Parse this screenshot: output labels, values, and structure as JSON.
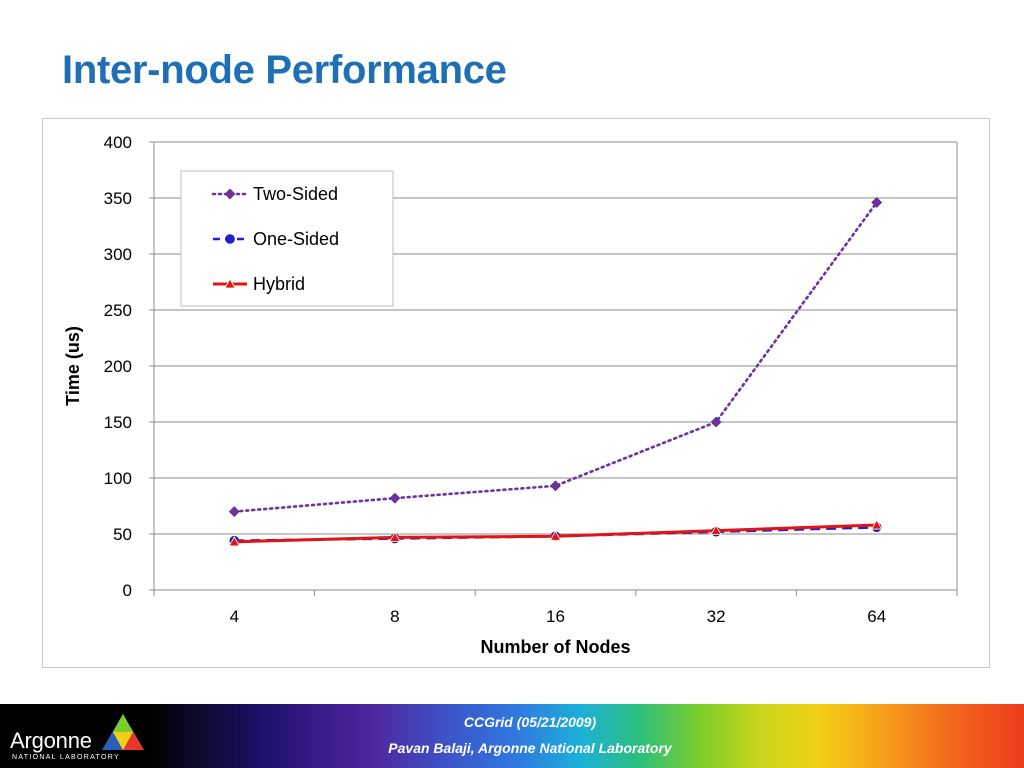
{
  "slide": {
    "title": "Inter-node Performance"
  },
  "footer": {
    "line1": "CCGrid (05/21/2009)",
    "line2": "Pavan Balaji, Argonne National Laboratory",
    "logo_text": "Argonne",
    "logo_subtext": "NATIONAL LABORATORY"
  },
  "colors": {
    "title": "#1f6fb7",
    "two_sided": "#7030a0",
    "one_sided": "#1f1fd6",
    "hybrid": "#e31414"
  },
  "chart_data": {
    "type": "line",
    "title": "",
    "xlabel": "Number of Nodes",
    "ylabel": "Time (us)",
    "categories": [
      "4",
      "8",
      "16",
      "32",
      "64"
    ],
    "ylim": [
      0,
      400
    ],
    "yticks": [
      0,
      50,
      100,
      150,
      200,
      250,
      300,
      350,
      400
    ],
    "grid": true,
    "legend_position": "top-left",
    "series": [
      {
        "name": "Two-Sided",
        "values": [
          70,
          82,
          93,
          150,
          346
        ],
        "style": "dotted",
        "marker": "diamond",
        "color": "#7030a0"
      },
      {
        "name": "One-Sided",
        "values": [
          44,
          46,
          48,
          52,
          56
        ],
        "style": "dashed",
        "marker": "circle",
        "color": "#1f1fd6"
      },
      {
        "name": "Hybrid",
        "values": [
          43,
          47,
          48,
          53,
          58
        ],
        "style": "solid",
        "marker": "triangle",
        "color": "#e31414"
      }
    ]
  }
}
